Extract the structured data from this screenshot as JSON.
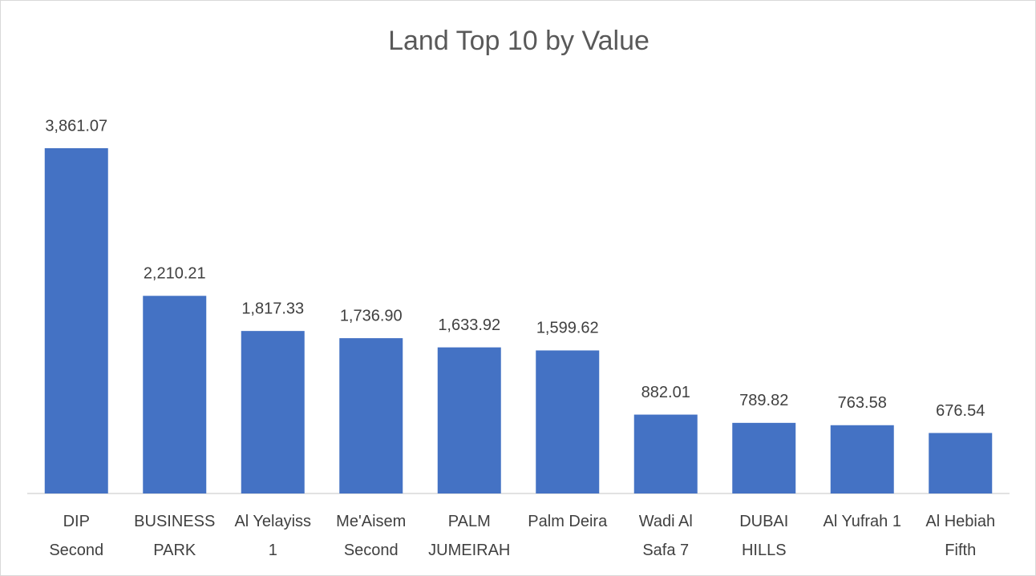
{
  "chart_data": {
    "type": "bar",
    "title": "Land Top 10 by Value",
    "categories": [
      "DIP Second",
      "BUSINESS PARK",
      "Al Yelayiss 1",
      "Me'Aisem Second",
      "PALM JUMEIRAH",
      "Palm Deira",
      "Wadi Al Safa 7",
      "DUBAI HILLS",
      "Al Yufrah 1",
      "Al Hebiah Fifth"
    ],
    "values": [
      3861.07,
      2210.21,
      1817.33,
      1736.9,
      1633.92,
      1599.62,
      882.01,
      789.82,
      763.58,
      676.54
    ],
    "value_labels": [
      "3,861.07",
      "2,210.21",
      "1,817.33",
      "1,736.90",
      "1,633.92",
      "1,599.62",
      "882.01",
      "789.82",
      "763.58",
      "676.54"
    ],
    "color": "#4472c4",
    "ylim": [
      0,
      4000
    ]
  }
}
